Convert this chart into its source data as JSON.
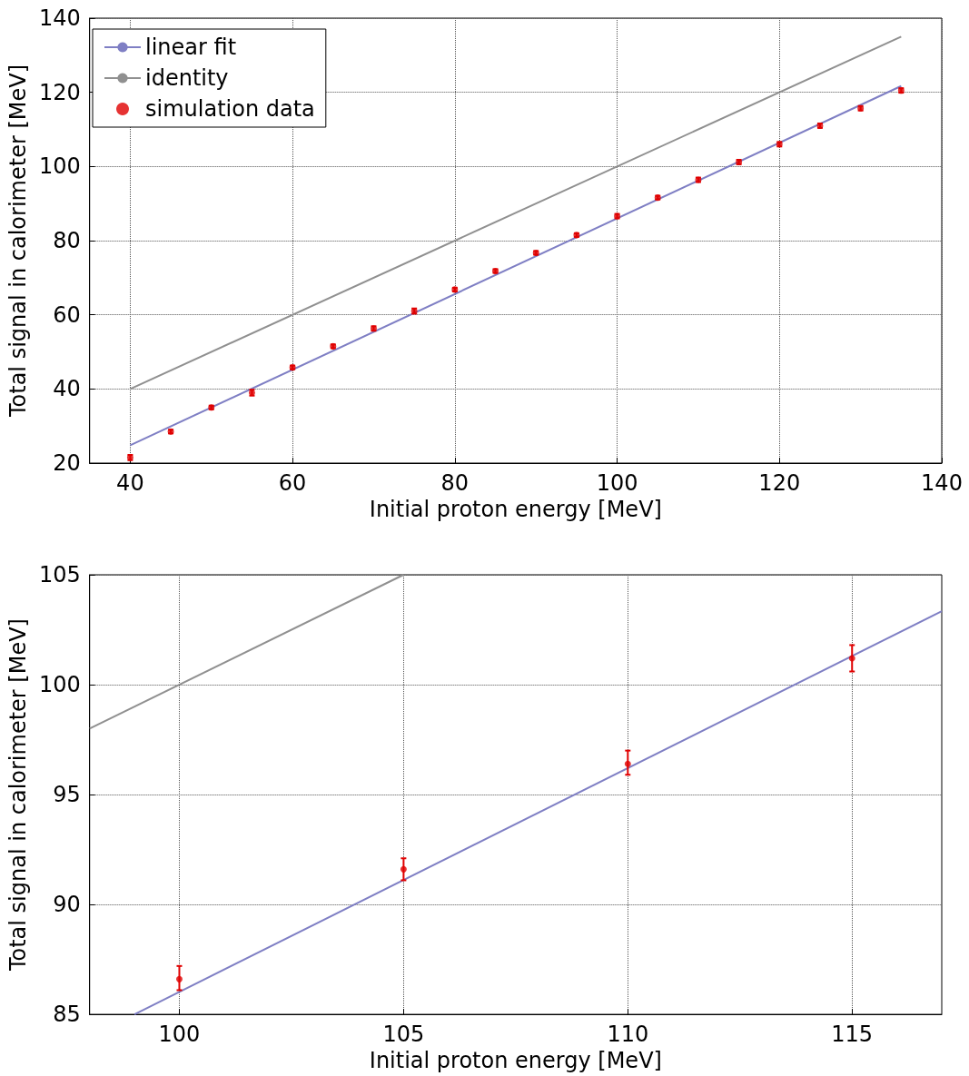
{
  "chart_data": [
    {
      "type": "scatter",
      "xlabel": "Initial proton energy [MeV]",
      "ylabel": "Total signal in calorimeter [MeV]",
      "xlim": [
        35,
        140
      ],
      "xticks": [
        40,
        60,
        80,
        100,
        120,
        140
      ],
      "ylim": [
        20,
        140
      ],
      "yticks": [
        20,
        40,
        60,
        80,
        100,
        120,
        140
      ],
      "grid": true,
      "legend": "top left",
      "series": [
        {
          "name": "linear fit",
          "type": "line",
          "color": "#7f7fc4",
          "x": [
            40,
            135
          ],
          "values": [
            24.8,
            121.7
          ]
        },
        {
          "name": "identity",
          "type": "line",
          "color": "#909090",
          "x": [
            40,
            135
          ],
          "values": [
            40,
            135
          ]
        },
        {
          "name": "simulation data",
          "marker": "circle",
          "color": "#e00000",
          "x": [
            40,
            45,
            50,
            55,
            60,
            65,
            70,
            75,
            80,
            85,
            90,
            95,
            100,
            105,
            110,
            115,
            120,
            125,
            130,
            135
          ],
          "values": [
            21.5,
            28.5,
            35,
            39,
            45.8,
            51.5,
            56.3,
            61,
            66.8,
            71.8,
            76.7,
            81.5,
            86.6,
            91.6,
            96.4,
            101.2,
            106,
            111,
            115.7,
            120.5
          ],
          "errors": [
            0.7,
            0.5,
            0.5,
            0.8,
            0.5,
            0.5,
            0.6,
            0.7,
            0.5,
            0.5,
            0.5,
            0.5,
            0.6,
            0.5,
            0.6,
            0.6,
            0.6,
            0.6,
            0.6,
            0.6
          ]
        }
      ]
    },
    {
      "type": "scatter",
      "xlabel": "Initial proton energy [MeV]",
      "ylabel": "Total signal in calorimeter [MeV]",
      "xlim": [
        98,
        117
      ],
      "xticks": [
        100,
        105,
        110,
        115
      ],
      "ylim": [
        85,
        105
      ],
      "yticks": [
        85,
        90,
        95,
        100,
        105
      ],
      "grid": true,
      "series": [
        {
          "type": "line",
          "color": "#7f7fc4",
          "x": [
            99,
            117
          ],
          "values": [
            85,
            103.34
          ]
        },
        {
          "type": "line",
          "color": "#909090",
          "x": [
            98,
            105
          ],
          "values": [
            98,
            105
          ]
        },
        {
          "marker": "circle",
          "color": "#e00000",
          "x": [
            100,
            105,
            110,
            115
          ],
          "values": [
            86.6,
            91.6,
            96.4,
            101.2
          ],
          "errors": [
            [
              86.1,
              87.2
            ],
            [
              91.1,
              92.1
            ],
            [
              95.9,
              97.0
            ],
            [
              100.6,
              101.8
            ]
          ]
        }
      ]
    }
  ]
}
